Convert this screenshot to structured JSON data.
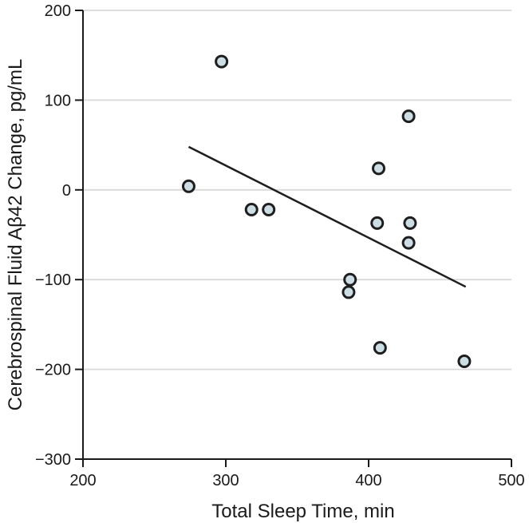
{
  "chart_data": {
    "type": "scatter",
    "title": "",
    "xlabel": "Total Sleep Time, min",
    "ylabel": "Cerebrospinal Fluid Aβ42 Change, pg/mL",
    "xlim": [
      200,
      500
    ],
    "ylim": [
      -300,
      200
    ],
    "xticks": [
      {
        "value": 200,
        "label": "200"
      },
      {
        "value": 300,
        "label": "300"
      },
      {
        "value": 400,
        "label": "400"
      },
      {
        "value": 500,
        "label": "500"
      }
    ],
    "yticks": [
      {
        "value": 200,
        "label": "200"
      },
      {
        "value": 100,
        "label": "100"
      },
      {
        "value": 0,
        "label": "0"
      },
      {
        "value": -100,
        "label": "−100"
      },
      {
        "value": -200,
        "label": "−200"
      },
      {
        "value": -300,
        "label": "−300"
      }
    ],
    "grid": "horizontal",
    "legend": "none",
    "points": [
      {
        "x": 274,
        "y": 4
      },
      {
        "x": 297,
        "y": 143
      },
      {
        "x": 318,
        "y": -22
      },
      {
        "x": 330,
        "y": -22
      },
      {
        "x": 386,
        "y": -114
      },
      {
        "x": 387,
        "y": -100
      },
      {
        "x": 406,
        "y": -37
      },
      {
        "x": 407,
        "y": 24
      },
      {
        "x": 408,
        "y": -176
      },
      {
        "x": 428,
        "y": 82
      },
      {
        "x": 428,
        "y": -59
      },
      {
        "x": 429,
        "y": -37
      },
      {
        "x": 467,
        "y": -191
      }
    ],
    "trend_line": {
      "x1": 274,
      "y1": 48,
      "x2": 468,
      "y2": -108
    },
    "colors": {
      "point_fill": "#ccdde4",
      "point_stroke": "#1e1e1e",
      "trend_line": "#1e1e1e",
      "grid": "#d9d9d9",
      "axis": "#1a1a1a",
      "text": "#1a1a1a",
      "background": "#ffffff"
    }
  }
}
